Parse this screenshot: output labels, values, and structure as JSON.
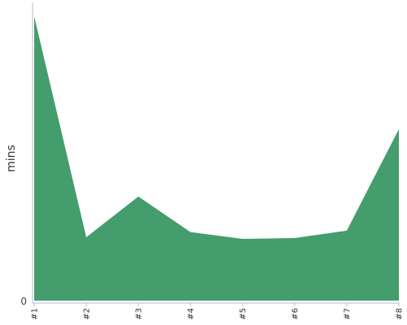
{
  "chart_data": {
    "type": "area",
    "categories": [
      "#1",
      "#2",
      "#3",
      "#4",
      "#5",
      "#6",
      "#7",
      "#8"
    ],
    "series": [
      {
        "values": [
          100,
          22.3,
          36.6,
          24.1,
          21.7,
          22.0,
          24.6,
          60.3
        ],
        "color": "#449d6c"
      }
    ],
    "ylabel": "mins",
    "xlabel": "",
    "y_tick_labels": [
      "0"
    ],
    "ylim": [
      0,
      100
    ],
    "grid": false,
    "legend": "none"
  }
}
